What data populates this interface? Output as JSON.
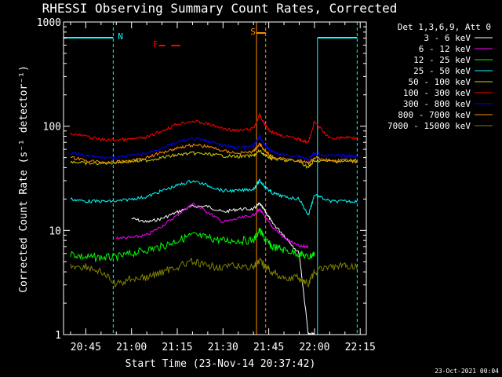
{
  "chart_data": {
    "type": "line",
    "title": "RHESSI Observing Summary Count Rates, Corrected",
    "xlabel": "Start Time (23-Nov-14 20:37:42)",
    "ylabel": "Corrected Count Rate (s⁻¹ detector⁻¹)",
    "y_scale": "log",
    "ylim": [
      1,
      1000
    ],
    "xlim": [
      "20:37:42",
      "22:17:00"
    ],
    "x_ticks": [
      "20:45",
      "21:00",
      "21:15",
      "21:30",
      "21:45",
      "22:00",
      "22:15"
    ],
    "y_ticks": [
      "1",
      "10",
      "100",
      "1000"
    ],
    "legend_title": "Det 1,3,6,9, Att 0",
    "legend_position": "right",
    "footer": "23-Oct-2021 00:04",
    "annotations": [
      {
        "text": "N",
        "color": "#00ffff"
      },
      {
        "text": "F",
        "color": "#ff0000"
      },
      {
        "text": "S",
        "color": "#ff8c00"
      }
    ],
    "x": [
      "20:40",
      "20:45",
      "20:50",
      "20:55",
      "21:00",
      "21:05",
      "21:10",
      "21:15",
      "21:20",
      "21:25",
      "21:30",
      "21:35",
      "21:40",
      "21:42",
      "21:44",
      "21:46",
      "21:50",
      "21:55",
      "21:58",
      "22:00",
      "22:05",
      "22:10",
      "22:14"
    ],
    "series": [
      {
        "name": "3 - 6 keV",
        "color": "#ffffff",
        "values": [
          null,
          null,
          null,
          null,
          13,
          12,
          13,
          15,
          17,
          17,
          15,
          16,
          16,
          18,
          15,
          12,
          9,
          6,
          1,
          1,
          null,
          null,
          null
        ]
      },
      {
        "name": "6 - 12 keV",
        "color": "#ff00ff",
        "values": [
          null,
          null,
          null,
          8.5,
          8.5,
          9,
          11,
          14,
          18,
          15,
          12,
          13,
          14,
          16,
          13,
          11,
          8.5,
          7,
          7,
          null,
          null,
          null,
          null
        ]
      },
      {
        "name": "12 - 25 keV",
        "color": "#00ff00",
        "values": [
          6,
          5.5,
          5.5,
          5.5,
          6,
          6.5,
          7,
          8,
          9,
          8.5,
          8,
          8,
          8,
          10,
          8,
          7,
          6.5,
          6,
          5.5,
          6,
          null,
          null,
          null
        ]
      },
      {
        "name": "25 - 50 keV",
        "color": "#00ffff",
        "values": [
          20,
          19,
          19,
          19,
          20,
          21,
          24,
          27,
          30,
          27,
          24,
          24,
          25,
          30,
          26,
          23,
          21,
          20,
          14,
          22,
          19,
          19,
          19
        ]
      },
      {
        "name": "50 - 100 keV",
        "color": "#d4d400",
        "values": [
          46,
          44,
          44,
          45,
          46,
          47,
          50,
          53,
          55,
          54,
          52,
          51,
          52,
          58,
          52,
          49,
          47,
          46,
          40,
          47,
          46,
          46,
          46
        ]
      },
      {
        "name": "100 - 300 keV",
        "color": "#ff0000",
        "values": [
          85,
          80,
          74,
          74,
          75,
          78,
          90,
          105,
          112,
          105,
          95,
          90,
          95,
          128,
          100,
          88,
          80,
          75,
          70,
          110,
          76,
          78,
          78
        ]
      },
      {
        "name": "300 - 800 keV",
        "color": "#0000ff",
        "values": [
          55,
          52,
          50,
          50,
          52,
          55,
          62,
          70,
          76,
          72,
          65,
          62,
          64,
          80,
          64,
          57,
          53,
          52,
          48,
          55,
          52,
          52,
          52
        ]
      },
      {
        "name": "800 - 7000 keV",
        "color": "#ff8c00",
        "values": [
          50,
          47,
          45,
          45,
          47,
          50,
          56,
          62,
          66,
          64,
          58,
          55,
          57,
          68,
          57,
          51,
          48,
          47,
          44,
          50,
          47,
          47,
          47
        ]
      },
      {
        "name": "7000 - 15000 keV",
        "color": "#808000",
        "values": [
          4.5,
          4.5,
          4,
          3,
          3.5,
          3.5,
          4,
          4.5,
          5,
          4.5,
          4.5,
          4.5,
          4.5,
          5,
          4.5,
          4,
          3.5,
          3.5,
          3,
          4,
          4.5,
          4.5,
          4.5
        ]
      }
    ]
  }
}
